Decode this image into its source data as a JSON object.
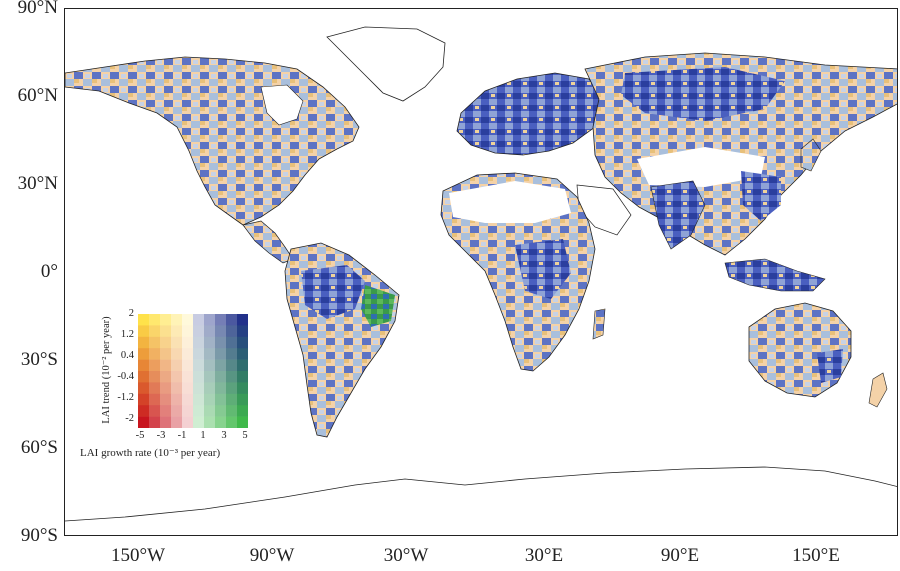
{
  "map": {
    "lat_labels": [
      "90°N",
      "60°N",
      "30°N",
      "0°",
      "30°S",
      "60°S",
      "90°S"
    ],
    "lon_labels": [
      "150°W",
      "90°W",
      "30°W",
      "30°E",
      "90°E",
      "150°E"
    ]
  },
  "legend": {
    "y_label": "LAI trend (10⁻² per year)",
    "x_label": "LAI growth rate (10⁻³ per year)",
    "y_ticks": [
      "2",
      "1.2",
      "0.4",
      "-0.4",
      "-1.2",
      "-2"
    ],
    "x_ticks": [
      "-5",
      "-3",
      "-1",
      "1",
      "3",
      "5"
    ],
    "colors": {
      "warm_top": "#ffe24a",
      "warm_bottom": "#c8141e",
      "cool_top": "#22318a",
      "cool_bottom": "#3fb94a"
    }
  }
}
